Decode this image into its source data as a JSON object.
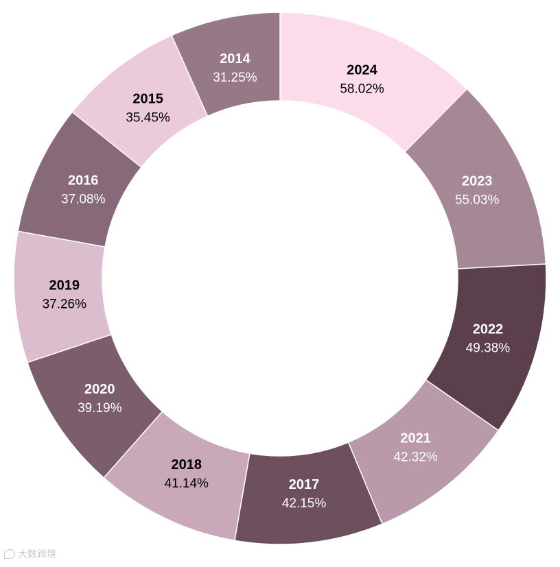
{
  "chart_data": {
    "type": "pie",
    "donut": true,
    "categories": [
      "2024",
      "2023",
      "2022",
      "2021",
      "2017",
      "2018",
      "2020",
      "2019",
      "2016",
      "2015",
      "2014"
    ],
    "values": [
      58.02,
      55.03,
      49.38,
      42.32,
      42.15,
      41.14,
      39.19,
      37.26,
      37.08,
      35.45,
      31.25
    ],
    "value_labels": [
      "58.02%",
      "55.03%",
      "49.38%",
      "42.32%",
      "42.15%",
      "41.14%",
      "39.19%",
      "37.26%",
      "37.08%",
      "35.45%",
      "31.25%"
    ],
    "colors": [
      "#fcdbea",
      "#a58796",
      "#5b3f4c",
      "#b999aa",
      "#6d4f5e",
      "#c9a8b9",
      "#7b5d6c",
      "#dbbdcd",
      "#876979",
      "#ebcbdb",
      "#967886"
    ],
    "label_colors": [
      "#000000",
      "#ffffff",
      "#ffffff",
      "#ffffff",
      "#ffffff",
      "#000000",
      "#ffffff",
      "#000000",
      "#ffffff",
      "#000000",
      "#ffffff"
    ],
    "title": "",
    "legend": "none"
  },
  "watermark": {
    "text": "大数跨境"
  }
}
